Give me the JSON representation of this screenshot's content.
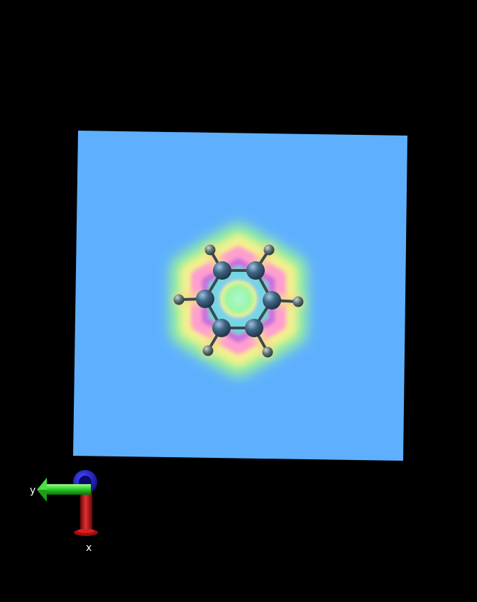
{
  "viewer": {
    "background_color": "#000000",
    "plane_color": "#5eb0fe"
  },
  "molecule": {
    "name": "benzene",
    "atoms": {
      "carbon_color": "#3b5f80",
      "hydrogen_color": "#5a6e6e"
    },
    "density_map": {
      "colors": [
        "#5eb0fe",
        "#9ef7a0",
        "#f6f58a",
        "#ff9fcf",
        "#c36ae0"
      ]
    }
  },
  "axes_gizmo": {
    "x_label": "x",
    "y_label": "y",
    "x_color": "#c81414",
    "y_color": "#2ed12a",
    "z_color": "#1a1ad6"
  }
}
